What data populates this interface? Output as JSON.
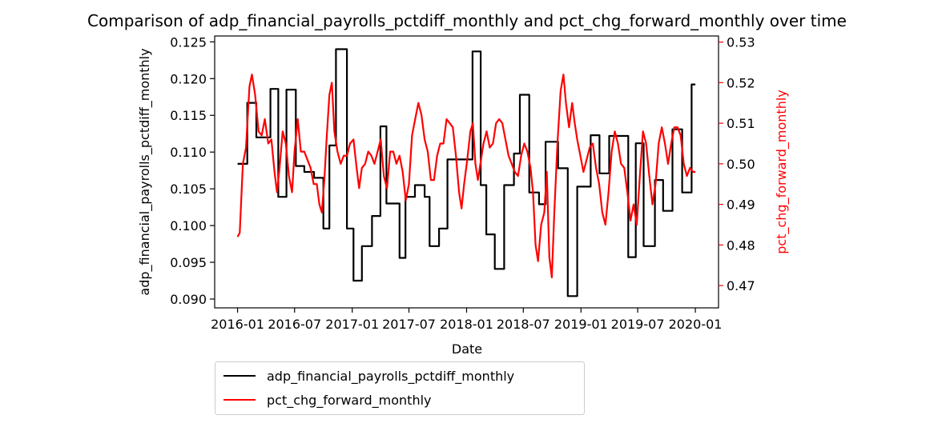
{
  "chart_data": {
    "type": "line",
    "title": "Comparison of adp_financial_payrolls_pctdiff_monthly and pct_chg_forward_monthly over time",
    "xlabel": "Date",
    "ylabel_left": "adp_financial_payrolls_pctdiff_monthly",
    "ylabel_right": "pct_chg_forward_monthly",
    "xlim": [
      "2015-10-20",
      "2020-03-15"
    ],
    "ylim_left": [
      0.0888,
      0.1258
    ],
    "ylim_right": [
      0.4645,
      0.5315
    ],
    "x_ticks": [
      "2016-01",
      "2016-07",
      "2017-01",
      "2017-07",
      "2018-01",
      "2018-07",
      "2019-01",
      "2019-07",
      "2020-01"
    ],
    "y_ticks_left": [
      "0.090",
      "0.095",
      "0.100",
      "0.105",
      "0.110",
      "0.115",
      "0.120",
      "0.125"
    ],
    "y_ticks_right": [
      "0.47",
      "0.48",
      "0.49",
      "0.50",
      "0.51",
      "0.52",
      "0.53"
    ],
    "grid": false,
    "legend_placement": "below the plot, left",
    "colors": {
      "series_left": "#000000",
      "series_right": "#ff0000",
      "right_axis": "#ff0000"
    },
    "series": [
      {
        "name": "adp_financial_payrolls_pctdiff_monthly",
        "axis": "left",
        "color": "#000000",
        "step": true,
        "points": [
          [
            "2016-01-01",
            0.1084
          ],
          [
            "2016-02-01",
            0.1167
          ],
          [
            "2016-03-01",
            0.112
          ],
          [
            "2016-04-15",
            0.1186
          ],
          [
            "2016-05-10",
            0.1039
          ],
          [
            "2016-06-05",
            0.1185
          ],
          [
            "2016-07-05",
            0.1081
          ],
          [
            "2016-08-01",
            0.1073
          ],
          [
            "2016-09-01",
            0.1065
          ],
          [
            "2016-10-01",
            0.0996
          ],
          [
            "2016-10-20",
            0.1109
          ],
          [
            "2016-11-10",
            0.124
          ],
          [
            "2016-12-15",
            0.0996
          ],
          [
            "2017-01-05",
            0.0925
          ],
          [
            "2017-02-01",
            0.0972
          ],
          [
            "2017-03-05",
            0.1013
          ],
          [
            "2017-04-01",
            0.1135
          ],
          [
            "2017-04-20",
            0.103
          ],
          [
            "2017-06-01",
            0.0956
          ],
          [
            "2017-06-20",
            0.1039
          ],
          [
            "2017-07-20",
            0.1055
          ],
          [
            "2017-08-20",
            0.1039
          ],
          [
            "2017-09-05",
            0.0972
          ],
          [
            "2017-10-05",
            0.0996
          ],
          [
            "2017-11-01",
            0.109
          ],
          [
            "2018-01-20",
            0.1237
          ],
          [
            "2018-02-15",
            0.1055
          ],
          [
            "2018-03-05",
            0.0988
          ],
          [
            "2018-04-01",
            0.0941
          ],
          [
            "2018-05-01",
            0.1055
          ],
          [
            "2018-06-01",
            0.1098
          ],
          [
            "2018-06-20",
            0.1178
          ],
          [
            "2018-07-20",
            0.1045
          ],
          [
            "2018-08-20",
            0.1029
          ],
          [
            "2018-09-10",
            0.1114
          ],
          [
            "2018-10-20",
            0.1078
          ],
          [
            "2018-11-20",
            0.0904
          ],
          [
            "2018-12-20",
            0.1053
          ],
          [
            "2019-02-01",
            0.1123
          ],
          [
            "2019-03-01",
            0.1071
          ],
          [
            "2019-04-01",
            0.1122
          ],
          [
            "2019-06-01",
            0.0957
          ],
          [
            "2019-06-25",
            0.1112
          ],
          [
            "2019-07-20",
            0.0972
          ],
          [
            "2019-08-25",
            0.1062
          ],
          [
            "2019-09-20",
            0.102
          ],
          [
            "2019-10-20",
            0.1131
          ],
          [
            "2019-11-20",
            0.1045
          ],
          [
            "2019-12-20",
            0.1192
          ],
          [
            "2020-01-01",
            0.1192
          ]
        ]
      },
      {
        "name": "pct_chg_forward_monthly",
        "axis": "right",
        "color": "#ff0000",
        "step": false,
        "points": [
          [
            "2016-01-01",
            0.482
          ],
          [
            "2016-01-08",
            0.483
          ],
          [
            "2016-01-18",
            0.5
          ],
          [
            "2016-01-28",
            0.504
          ],
          [
            "2016-02-08",
            0.519
          ],
          [
            "2016-02-16",
            0.522
          ],
          [
            "2016-02-26",
            0.517
          ],
          [
            "2016-03-08",
            0.508
          ],
          [
            "2016-03-18",
            0.507
          ],
          [
            "2016-03-28",
            0.511
          ],
          [
            "2016-04-08",
            0.505
          ],
          [
            "2016-04-18",
            0.506
          ],
          [
            "2016-04-28",
            0.498
          ],
          [
            "2016-05-06",
            0.493
          ],
          [
            "2016-05-14",
            0.499
          ],
          [
            "2016-05-24",
            0.508
          ],
          [
            "2016-06-03",
            0.505
          ],
          [
            "2016-06-13",
            0.497
          ],
          [
            "2016-06-23",
            0.493
          ],
          [
            "2016-07-01",
            0.503
          ],
          [
            "2016-07-11",
            0.511
          ],
          [
            "2016-07-21",
            0.503
          ],
          [
            "2016-08-01",
            0.503
          ],
          [
            "2016-08-11",
            0.501
          ],
          [
            "2016-08-21",
            0.499
          ],
          [
            "2016-08-31",
            0.495
          ],
          [
            "2016-09-10",
            0.495
          ],
          [
            "2016-09-18",
            0.49
          ],
          [
            "2016-09-26",
            0.488
          ],
          [
            "2016-10-04",
            0.496
          ],
          [
            "2016-10-12",
            0.507
          ],
          [
            "2016-10-20",
            0.517
          ],
          [
            "2016-10-28",
            0.52
          ],
          [
            "2016-11-05",
            0.508
          ],
          [
            "2016-11-15",
            0.503
          ],
          [
            "2016-11-25",
            0.5
          ],
          [
            "2016-12-05",
            0.502
          ],
          [
            "2016-12-15",
            0.502
          ],
          [
            "2016-12-25",
            0.505
          ],
          [
            "2017-01-05",
            0.506
          ],
          [
            "2017-01-15",
            0.499
          ],
          [
            "2017-01-23",
            0.494
          ],
          [
            "2017-02-01",
            0.499
          ],
          [
            "2017-02-11",
            0.5
          ],
          [
            "2017-02-21",
            0.503
          ],
          [
            "2017-03-03",
            0.502
          ],
          [
            "2017-03-13",
            0.5
          ],
          [
            "2017-03-23",
            0.503
          ],
          [
            "2017-04-02",
            0.506
          ],
          [
            "2017-04-12",
            0.497
          ],
          [
            "2017-04-22",
            0.494
          ],
          [
            "2017-05-02",
            0.503
          ],
          [
            "2017-05-12",
            0.503
          ],
          [
            "2017-05-22",
            0.5
          ],
          [
            "2017-06-01",
            0.502
          ],
          [
            "2017-06-11",
            0.498
          ],
          [
            "2017-06-21",
            0.491
          ],
          [
            "2017-07-01",
            0.495
          ],
          [
            "2017-07-11",
            0.507
          ],
          [
            "2017-07-21",
            0.511
          ],
          [
            "2017-07-31",
            0.515
          ],
          [
            "2017-08-10",
            0.512
          ],
          [
            "2017-08-20",
            0.506
          ],
          [
            "2017-08-30",
            0.503
          ],
          [
            "2017-09-09",
            0.496
          ],
          [
            "2017-09-19",
            0.496
          ],
          [
            "2017-09-29",
            0.502
          ],
          [
            "2017-10-09",
            0.505
          ],
          [
            "2017-10-19",
            0.505
          ],
          [
            "2017-10-29",
            0.511
          ],
          [
            "2017-11-08",
            0.51
          ],
          [
            "2017-11-18",
            0.509
          ],
          [
            "2017-11-28",
            0.502
          ],
          [
            "2017-12-08",
            0.493
          ],
          [
            "2017-12-16",
            0.489
          ],
          [
            "2017-12-24",
            0.495
          ],
          [
            "2018-01-03",
            0.501
          ],
          [
            "2018-01-13",
            0.508
          ],
          [
            "2018-01-21",
            0.51
          ],
          [
            "2018-01-29",
            0.5
          ],
          [
            "2018-02-06",
            0.496
          ],
          [
            "2018-02-14",
            0.5
          ],
          [
            "2018-02-24",
            0.505
          ],
          [
            "2018-03-06",
            0.508
          ],
          [
            "2018-03-16",
            0.504
          ],
          [
            "2018-03-26",
            0.505
          ],
          [
            "2018-04-05",
            0.51
          ],
          [
            "2018-04-15",
            0.511
          ],
          [
            "2018-04-25",
            0.51
          ],
          [
            "2018-05-05",
            0.506
          ],
          [
            "2018-05-15",
            0.502
          ],
          [
            "2018-05-25",
            0.5
          ],
          [
            "2018-06-04",
            0.498
          ],
          [
            "2018-06-14",
            0.497
          ],
          [
            "2018-06-24",
            0.502
          ],
          [
            "2018-07-04",
            0.505
          ],
          [
            "2018-07-14",
            0.503
          ],
          [
            "2018-07-24",
            0.499
          ],
          [
            "2018-08-01",
            0.493
          ],
          [
            "2018-08-09",
            0.48
          ],
          [
            "2018-08-17",
            0.476
          ],
          [
            "2018-08-27",
            0.485
          ],
          [
            "2018-09-06",
            0.488
          ],
          [
            "2018-09-14",
            0.498
          ],
          [
            "2018-09-22",
            0.477
          ],
          [
            "2018-09-30",
            0.472
          ],
          [
            "2018-10-08",
            0.488
          ],
          [
            "2018-10-18",
            0.505
          ],
          [
            "2018-10-28",
            0.518
          ],
          [
            "2018-11-06",
            0.522
          ],
          [
            "2018-11-14",
            0.515
          ],
          [
            "2018-11-24",
            0.509
          ],
          [
            "2018-12-04",
            0.515
          ],
          [
            "2018-12-12",
            0.51
          ],
          [
            "2018-12-20",
            0.506
          ],
          [
            "2018-12-30",
            0.502
          ],
          [
            "2019-01-09",
            0.498
          ],
          [
            "2019-01-19",
            0.501
          ],
          [
            "2019-01-29",
            0.504
          ],
          [
            "2019-02-08",
            0.505
          ],
          [
            "2019-02-18",
            0.499
          ],
          [
            "2019-02-28",
            0.495
          ],
          [
            "2019-03-10",
            0.488
          ],
          [
            "2019-03-20",
            0.485
          ],
          [
            "2019-03-30",
            0.493
          ],
          [
            "2019-04-09",
            0.503
          ],
          [
            "2019-04-19",
            0.508
          ],
          [
            "2019-04-29",
            0.505
          ],
          [
            "2019-05-09",
            0.5
          ],
          [
            "2019-05-19",
            0.499
          ],
          [
            "2019-05-29",
            0.493
          ],
          [
            "2019-06-08",
            0.486
          ],
          [
            "2019-06-18",
            0.49
          ],
          [
            "2019-06-28",
            0.485
          ],
          [
            "2019-07-08",
            0.497
          ],
          [
            "2019-07-18",
            0.508
          ],
          [
            "2019-07-28",
            0.505
          ],
          [
            "2019-08-07",
            0.497
          ],
          [
            "2019-08-17",
            0.49
          ],
          [
            "2019-08-27",
            0.495
          ],
          [
            "2019-09-06",
            0.505
          ],
          [
            "2019-09-16",
            0.509
          ],
          [
            "2019-09-26",
            0.505
          ],
          [
            "2019-10-06",
            0.5
          ],
          [
            "2019-10-16",
            0.505
          ],
          [
            "2019-10-26",
            0.509
          ],
          [
            "2019-11-05",
            0.509
          ],
          [
            "2019-11-15",
            0.507
          ],
          [
            "2019-11-25",
            0.5
          ],
          [
            "2019-12-05",
            0.497
          ],
          [
            "2019-12-15",
            0.499
          ],
          [
            "2019-12-25",
            0.498
          ],
          [
            "2020-01-01",
            0.498
          ]
        ]
      }
    ]
  }
}
